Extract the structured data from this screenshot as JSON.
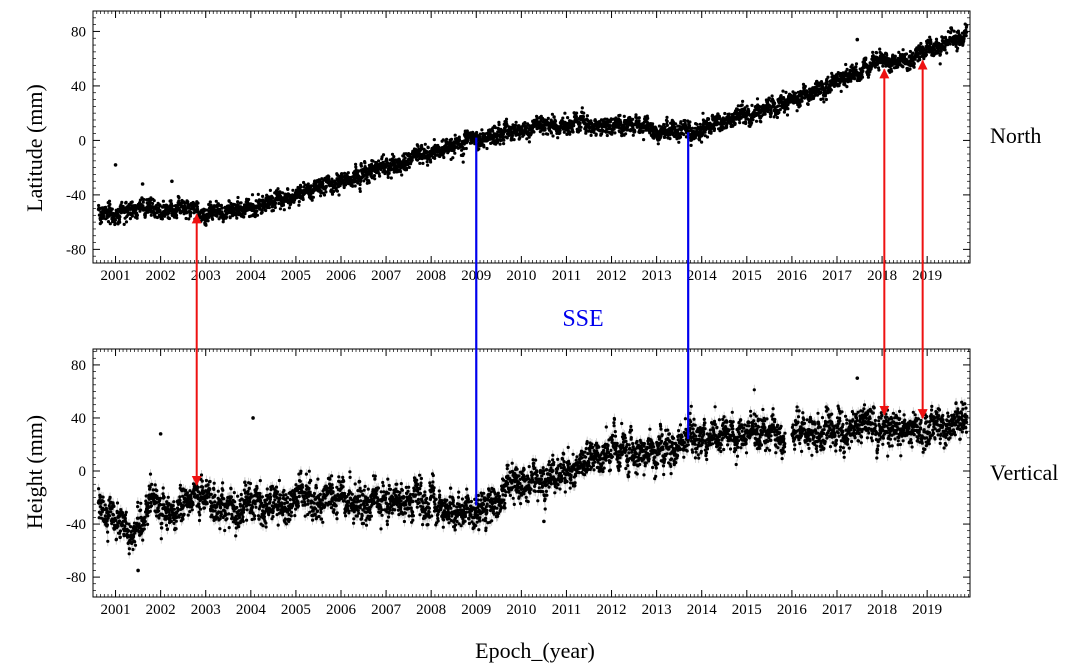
{
  "colors": {
    "data": "#000000",
    "errorbar": "#c8c8c8",
    "sse": "#0000ee",
    "arrows": "#ee1111"
  },
  "labels": {
    "sse": "SSE",
    "xlabel": "Epoch_(year)"
  },
  "chart_data": [
    {
      "type": "scatter",
      "component": "North",
      "ylabel": "Latitude (mm)",
      "ylim": [
        -90,
        95
      ],
      "yticks": [
        -80,
        -40,
        0,
        40,
        80
      ],
      "xlim": [
        2000.5,
        2019.95
      ],
      "xticks": [
        2001,
        2002,
        2003,
        2004,
        2005,
        2006,
        2007,
        2008,
        2009,
        2010,
        2011,
        2012,
        2013,
        2014,
        2015,
        2016,
        2017,
        2018,
        2019
      ],
      "trend": [
        [
          2000.6,
          -55
        ],
        [
          2002.8,
          -47
        ],
        [
          2002.85,
          -57
        ],
        [
          2005.0,
          -40
        ],
        [
          2007.0,
          -20
        ],
        [
          2009.0,
          2
        ],
        [
          2011.0,
          13
        ],
        [
          2013.7,
          6
        ],
        [
          2015.0,
          18
        ],
        [
          2016.0,
          30
        ],
        [
          2017.0,
          43
        ],
        [
          2018.0,
          58
        ],
        [
          2018.5,
          58
        ],
        [
          2019.0,
          66
        ],
        [
          2019.9,
          78
        ]
      ],
      "noise_sd": 3.5,
      "outliers": [
        [
          2001.0,
          -18
        ],
        [
          2001.6,
          -32
        ],
        [
          2002.25,
          -30
        ],
        [
          2017.45,
          74
        ]
      ],
      "grid": false,
      "legend": "none"
    },
    {
      "type": "scatter",
      "component": "Vertical",
      "ylabel": "Height (mm)",
      "ylim": [
        -95,
        92
      ],
      "yticks": [
        -80,
        -40,
        0,
        40,
        80
      ],
      "xlim": [
        2000.5,
        2019.95
      ],
      "xticks": [
        2001,
        2002,
        2003,
        2004,
        2005,
        2006,
        2007,
        2008,
        2009,
        2010,
        2011,
        2012,
        2013,
        2014,
        2015,
        2016,
        2017,
        2018,
        2019
      ],
      "trend": [
        [
          2000.6,
          -25
        ],
        [
          2001.4,
          -48
        ],
        [
          2001.8,
          -20
        ],
        [
          2002.2,
          -35
        ],
        [
          2002.8,
          -18
        ],
        [
          2003.5,
          -30
        ],
        [
          2004.0,
          -25
        ],
        [
          2005.0,
          -20
        ],
        [
          2006.0,
          -22
        ],
        [
          2007.0,
          -25
        ],
        [
          2008.0,
          -22
        ],
        [
          2009.0,
          -30
        ],
        [
          2010.0,
          -8
        ],
        [
          2011.0,
          2
        ],
        [
          2012.0,
          15
        ],
        [
          2013.0,
          15
        ],
        [
          2013.7,
          20
        ],
        [
          2014.0,
          25
        ],
        [
          2015.0,
          30
        ],
        [
          2016.0,
          28
        ],
        [
          2017.0,
          30
        ],
        [
          2018.0,
          35
        ],
        [
          2019.0,
          32
        ],
        [
          2019.9,
          38
        ]
      ],
      "noise_sd": 7,
      "outliers": [
        [
          2001.5,
          -75
        ],
        [
          2004.05,
          40
        ],
        [
          2017.45,
          70
        ],
        [
          2002.0,
          28
        ],
        [
          2010.5,
          -38
        ]
      ],
      "grid": false,
      "legend": "none"
    }
  ],
  "events": {
    "sse_epochs": [
      2009.0,
      2013.7
    ],
    "arrow_epochs": [
      2002.8,
      2018.05,
      2018.9
    ]
  }
}
